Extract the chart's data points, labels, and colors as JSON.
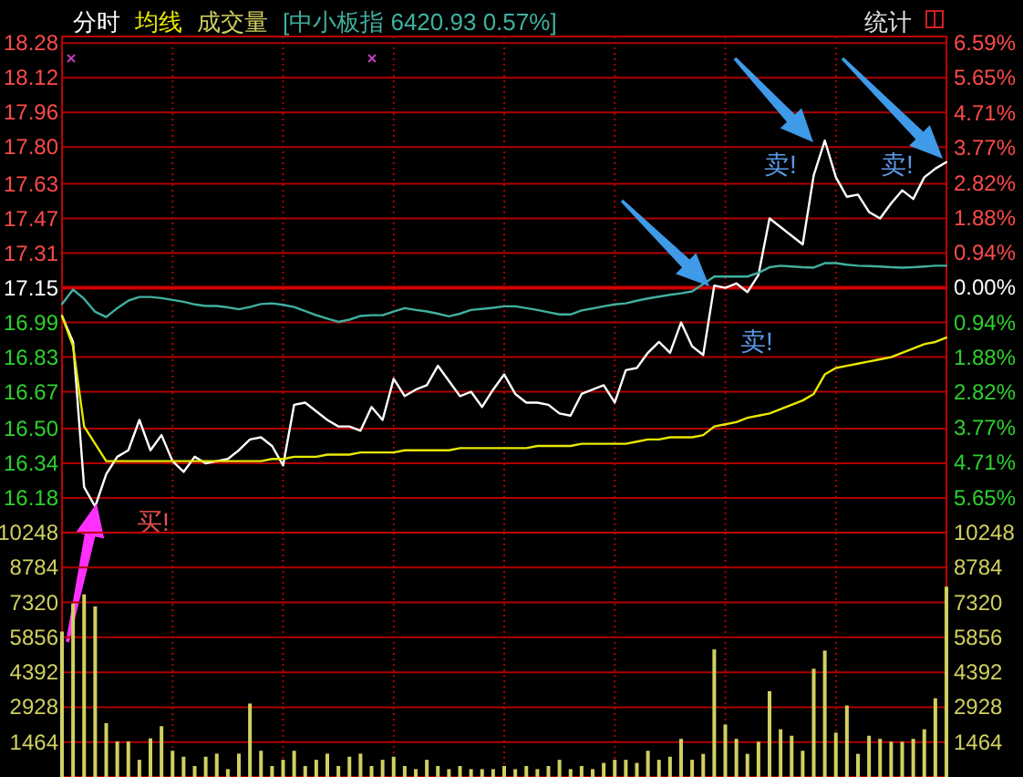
{
  "chart_data": [
    {
      "type": "line",
      "categories": [
        null,
        null,
        null,
        null,
        null,
        null,
        null,
        null,
        null,
        null,
        null,
        null,
        null,
        null,
        null,
        null,
        null,
        null,
        null,
        null,
        null,
        null,
        null,
        null,
        null,
        null,
        null,
        null,
        null,
        null,
        null,
        null,
        null,
        null,
        null,
        null,
        null,
        null,
        null,
        null,
        null,
        null,
        null,
        null,
        null,
        null,
        null,
        null,
        null,
        null,
        null,
        null,
        null,
        null,
        null,
        null,
        null,
        null,
        null,
        null,
        null,
        null,
        null,
        null,
        null,
        null,
        null,
        null,
        null,
        null,
        null,
        null,
        null,
        null,
        null,
        null,
        null,
        null,
        null,
        null,
        null
      ],
      "ylim": [
        16.02,
        18.31
      ],
      "yticks": [
        18.28,
        18.12,
        17.96,
        {
          "value": 17.8,
          "label": "17.80"
        },
        17.63,
        17.47,
        17.31,
        17.15,
        16.99,
        16.83,
        16.67,
        {
          "value": 16.5,
          "label": "16.50"
        },
        16.34,
        16.18
      ],
      "y2lim": [
        -6.59,
        6.76
      ],
      "y2ticks": [
        {
          "value": 6.59,
          "label": "6.59%"
        },
        {
          "value": 5.65,
          "label": "5.65%"
        },
        {
          "value": 4.71,
          "label": "4.71%"
        },
        {
          "value": 3.77,
          "label": "3.77%"
        },
        {
          "value": 2.82,
          "label": "2.82%"
        },
        {
          "value": 1.88,
          "label": "1.88%"
        },
        {
          "value": 0.94,
          "label": "0.94%"
        },
        {
          "value": 0,
          "label": "0.00%"
        },
        {
          "value": -0.94,
          "label": "0.94%"
        },
        {
          "value": -1.88,
          "label": "1.88%"
        },
        {
          "value": -2.82,
          "label": "2.82%"
        },
        {
          "value": -3.77,
          "label": "3.77%"
        },
        {
          "value": -4.71,
          "label": "4.71%"
        },
        {
          "value": -5.65,
          "label": "5.65%"
        }
      ],
      "grid": true,
      "ref_lines": [
        {
          "axis": "y",
          "value": 17.15
        }
      ],
      "series": [
        {
          "name": "分时",
          "color": "#ffffff",
          "values": [
            17.02,
            16.9,
            16.23,
            16.14,
            16.29,
            16.37,
            16.4,
            16.54,
            16.4,
            16.47,
            16.35,
            16.3,
            16.37,
            16.34,
            16.35,
            16.36,
            16.4,
            16.45,
            16.46,
            16.42,
            16.33,
            16.61,
            16.62,
            16.58,
            16.54,
            16.51,
            16.51,
            16.49,
            16.6,
            16.54,
            16.73,
            16.65,
            16.68,
            16.7,
            16.79,
            16.72,
            16.65,
            16.67,
            16.6,
            16.68,
            16.75,
            16.66,
            16.62,
            16.62,
            16.61,
            16.57,
            16.56,
            16.66,
            16.68,
            16.7,
            16.62,
            16.77,
            16.78,
            16.85,
            16.9,
            16.85,
            16.99,
            16.88,
            16.84,
            17.16,
            17.15,
            17.17,
            17.13,
            17.21,
            17.47,
            17.43,
            17.39,
            17.35,
            17.67,
            17.83,
            17.66,
            17.57,
            17.58,
            17.5,
            17.47,
            17.54,
            17.6,
            17.56,
            17.66,
            17.7,
            17.73
          ]
        },
        {
          "name": "均线",
          "color": "#e8e800",
          "values": [
            17.02,
            16.88,
            16.51,
            16.43,
            16.35,
            16.35,
            16.35,
            16.35,
            16.35,
            16.35,
            16.35,
            16.35,
            16.35,
            16.35,
            16.35,
            16.35,
            16.35,
            16.35,
            16.35,
            16.36,
            16.36,
            16.37,
            16.37,
            16.37,
            16.38,
            16.38,
            16.38,
            16.39,
            16.39,
            16.39,
            16.39,
            16.4,
            16.4,
            16.4,
            16.4,
            16.4,
            16.41,
            16.41,
            16.41,
            16.41,
            16.41,
            16.41,
            16.41,
            16.42,
            16.42,
            16.42,
            16.42,
            16.43,
            16.43,
            16.43,
            16.43,
            16.43,
            16.44,
            16.45,
            16.45,
            16.46,
            16.46,
            16.46,
            16.47,
            16.51,
            16.52,
            16.53,
            16.55,
            16.56,
            16.57,
            16.59,
            16.61,
            16.63,
            16.66,
            16.75,
            16.78,
            16.79,
            16.8,
            16.81,
            16.82,
            16.83,
            16.85,
            16.87,
            16.89,
            16.9,
            16.92
          ]
        },
        {
          "name": "[中小板指 6420.93 0.57%]",
          "color": "#40b0a0",
          "axis": "y2",
          "values": [
            -0.44,
            -0.05,
            -0.3,
            -0.65,
            -0.79,
            -0.55,
            -0.35,
            -0.25,
            -0.25,
            -0.28,
            -0.33,
            -0.38,
            -0.45,
            -0.49,
            -0.49,
            -0.53,
            -0.58,
            -0.52,
            -0.44,
            -0.42,
            -0.46,
            -0.52,
            -0.63,
            -0.74,
            -0.83,
            -0.92,
            -0.86,
            -0.76,
            -0.74,
            -0.74,
            -0.64,
            -0.55,
            -0.6,
            -0.64,
            -0.7,
            -0.77,
            -0.7,
            -0.6,
            -0.57,
            -0.54,
            -0.5,
            -0.5,
            -0.55,
            -0.6,
            -0.66,
            -0.72,
            -0.72,
            -0.61,
            -0.56,
            -0.5,
            -0.45,
            -0.42,
            -0.35,
            -0.29,
            -0.24,
            -0.19,
            -0.15,
            -0.1,
            0.1,
            0.3,
            0.3,
            0.3,
            0.3,
            0.4,
            0.55,
            0.59,
            0.57,
            0.55,
            0.54,
            0.66,
            0.66,
            0.62,
            0.59,
            0.58,
            0.57,
            0.55,
            0.54,
            0.55,
            0.57,
            0.59,
            0.59
          ]
        }
      ],
      "annotations": [
        "统计",
        "买!",
        "卖!",
        "卖!",
        "卖!"
      ]
    },
    {
      "type": "bar",
      "categories": [
        null,
        null,
        null,
        null,
        null,
        null,
        null,
        null,
        null,
        null,
        null,
        null,
        null,
        null,
        null,
        null,
        null,
        null,
        null,
        null,
        null,
        null,
        null,
        null,
        null,
        null,
        null,
        null,
        null,
        null,
        null,
        null,
        null,
        null,
        null,
        null,
        null,
        null,
        null,
        null,
        null,
        null,
        null,
        null,
        null,
        null,
        null,
        null,
        null,
        null,
        null,
        null,
        null,
        null,
        null,
        null,
        null,
        null,
        null,
        null,
        null,
        null,
        null,
        null,
        null,
        null,
        null,
        null,
        null,
        null,
        null,
        null,
        null,
        null,
        null,
        null,
        null,
        null,
        null,
        null,
        null
      ],
      "ylim": [
        0,
        10248
      ],
      "yticks": [
        1464,
        2928,
        4392,
        5856,
        7320,
        8784,
        10248
      ],
      "y2lim": [
        0,
        10248
      ],
      "y2ticks": [
        1464,
        2928,
        4392,
        5856,
        7320,
        8784,
        10248
      ],
      "grid": true,
      "series": [
        {
          "name": "成交量",
          "color": "#d0d060",
          "values": [
            6100,
            7270,
            7660,
            7150,
            2260,
            1490,
            1490,
            720,
            1620,
            2130,
            1100,
            850,
            460,
            850,
            980,
            330,
            980,
            3080,
            1100,
            460,
            720,
            1100,
            460,
            720,
            980,
            460,
            850,
            980,
            460,
            720,
            850,
            460,
            330,
            720,
            460,
            330,
            460,
            330,
            330,
            330,
            460,
            330,
            460,
            330,
            460,
            720,
            330,
            460,
            330,
            590,
            720,
            720,
            590,
            1100,
            720,
            850,
            1600,
            720,
            970,
            5350,
            2200,
            1600,
            970,
            1480,
            3600,
            2000,
            1730,
            1100,
            4540,
            5300,
            1860,
            3000,
            970,
            1730,
            1600,
            1480,
            1480,
            1600,
            2000,
            3300,
            7980
          ]
        }
      ]
    }
  ]
}
